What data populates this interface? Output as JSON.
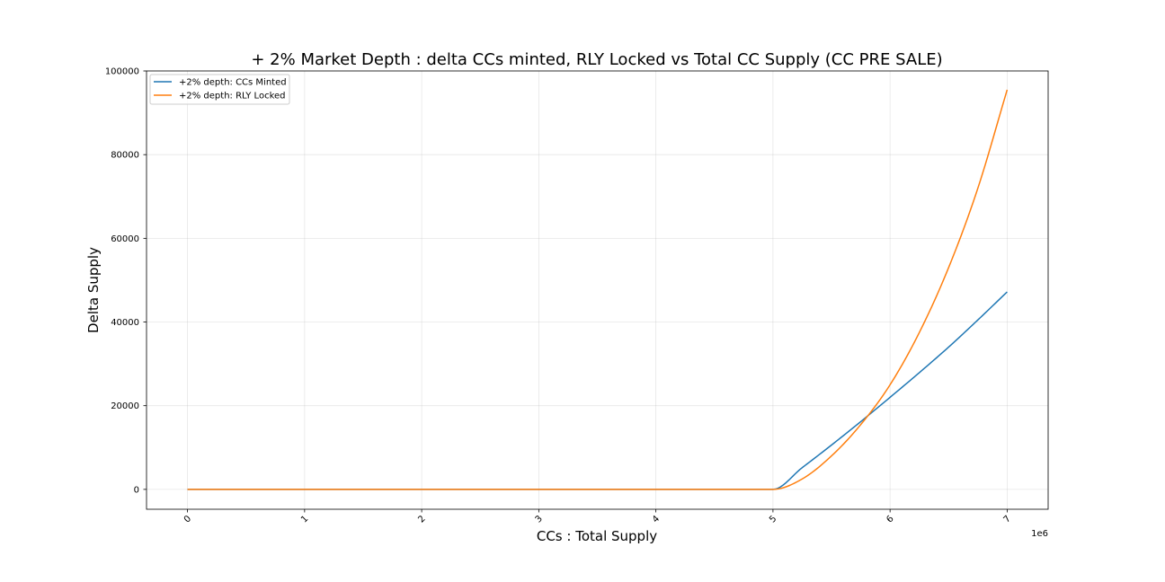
{
  "chart_data": {
    "type": "line",
    "title": "+ 2% Market Depth : delta CCs minted, RLY Locked vs Total CC Supply (CC PRE SALE)",
    "xlabel": "CCs : Total Supply",
    "ylabel": "Delta Supply",
    "x_offset_label": "1e6",
    "xlim": [
      -0.35,
      7.35
    ],
    "ylim": [
      -4750,
      100000
    ],
    "x_ticks": [
      0,
      1,
      2,
      3,
      4,
      5,
      6,
      7
    ],
    "x_tick_labels": [
      "0",
      "1",
      "2",
      "3",
      "4",
      "5",
      "6",
      "7"
    ],
    "y_ticks": [
      0,
      20000,
      40000,
      60000,
      80000,
      100000
    ],
    "y_tick_labels": [
      "0",
      "20000",
      "40000",
      "60000",
      "80000",
      "100000"
    ],
    "grid": true,
    "legend_position": "top-left",
    "series": [
      {
        "name": "+2% depth: CCs Minted",
        "color": "#1f77b4",
        "x": [
          0,
          1,
          2,
          3,
          4,
          5,
          5.25,
          5.5,
          5.75,
          6,
          6.25,
          6.5,
          6.75,
          7
        ],
        "y": [
          0,
          0,
          0,
          0,
          0,
          0,
          5200,
          10600,
          16200,
          22000,
          27900,
          34000,
          40500,
          47200
        ]
      },
      {
        "name": "+2% depth: RLY Locked",
        "color": "#ff7f0e",
        "x": [
          0,
          1,
          2,
          3,
          4,
          5,
          5.25,
          5.5,
          5.75,
          6,
          6.25,
          6.5,
          6.75,
          7
        ],
        "y": [
          0,
          0,
          0,
          0,
          0,
          0,
          2500,
          8000,
          15500,
          25000,
          37500,
          53000,
          72000,
          95500
        ]
      }
    ]
  }
}
